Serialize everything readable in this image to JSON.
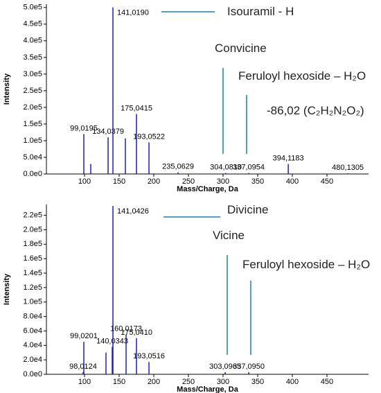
{
  "chart_data": [
    {
      "type": "stem",
      "xlabel": "Mass/Charge, Da",
      "ylabel": "Intensity",
      "color": "#1a1acc",
      "x": [
        99.0195,
        109.0,
        134.0379,
        141.019,
        159.0,
        175.0415,
        193.0522,
        235.0629,
        304.081,
        337.0954,
        394.1183,
        480.1305
      ],
      "labels": [
        "99,0195",
        null,
        "134,0379",
        "141,0190",
        null,
        "175,0415",
        "193,0522",
        "235,0629",
        "304,0810",
        "337,0954",
        "394,1183",
        "480,1305"
      ],
      "values": [
        120000,
        30000,
        110000,
        500000,
        107000,
        180000,
        95000,
        5000,
        3000,
        3000,
        30000,
        2000
      ],
      "xlim": [
        45,
        510
      ],
      "xticks": [
        100,
        150,
        200,
        250,
        300,
        350,
        400,
        450
      ],
      "ylim": [
        0,
        510000
      ],
      "yticks": [
        {
          "value": 0,
          "label": "0.0e0"
        },
        {
          "value": 50000,
          "label": "5.0e4"
        },
        {
          "value": 100000,
          "label": "1.0e5"
        },
        {
          "value": 150000,
          "label": "1.5e5"
        },
        {
          "value": 200000,
          "label": "2.0e5"
        },
        {
          "value": 250000,
          "label": "2.5e5"
        },
        {
          "value": 300000,
          "label": "3.0e5"
        },
        {
          "value": 350000,
          "label": "3.5e5"
        },
        {
          "value": 400000,
          "label": "4.0e5"
        },
        {
          "value": 450000,
          "label": "4.5e5"
        },
        {
          "value": 500000,
          "label": "5.0e5"
        }
      ],
      "annotations": [
        "Isouramil - H",
        "Convicine",
        "Feruloyl hexoside – H₂O",
        "-86,02 (C₂H₂N₂O₂)"
      ]
    },
    {
      "type": "stem",
      "xlabel": "Mass/Charge, Da",
      "ylabel": "Intensity",
      "color": "#1a1acc",
      "x": [
        98.0124,
        99.0201,
        131.0,
        140.0343,
        141.0426,
        160.0173,
        175.041,
        193.0516,
        303.0965,
        337.095
      ],
      "labels": [
        "98,0124",
        "99,0201",
        null,
        "140,0343",
        "141,0426",
        "160,0173",
        "175,0410",
        "193,0516",
        "303,0965",
        "337,0950"
      ],
      "values": [
        3000,
        45000,
        30000,
        38000,
        233000,
        55000,
        50000,
        17000,
        3000,
        3000
      ],
      "xlim": [
        45,
        510
      ],
      "xticks": [
        100,
        150,
        200,
        250,
        300,
        350,
        400,
        450
      ],
      "ylim": [
        0,
        235000
      ],
      "yticks": [
        {
          "value": 0,
          "label": "0.0e0"
        },
        {
          "value": 20000,
          "label": "2.0e4"
        },
        {
          "value": 40000,
          "label": "4.0e4"
        },
        {
          "value": 60000,
          "label": "6.0e4"
        },
        {
          "value": 80000,
          "label": "8.0e4"
        },
        {
          "value": 100000,
          "label": "1.0e5"
        },
        {
          "value": 120000,
          "label": "1.2e5"
        },
        {
          "value": 140000,
          "label": "1.4e5"
        },
        {
          "value": 160000,
          "label": "1.6e5"
        },
        {
          "value": 180000,
          "label": "1.8e5"
        },
        {
          "value": 200000,
          "label": "2.0e5"
        },
        {
          "value": 220000,
          "label": "2.2e5"
        }
      ],
      "annotations": [
        "Divicine",
        "Vicine",
        "Feruloyl hexoside – H₂O"
      ]
    }
  ]
}
